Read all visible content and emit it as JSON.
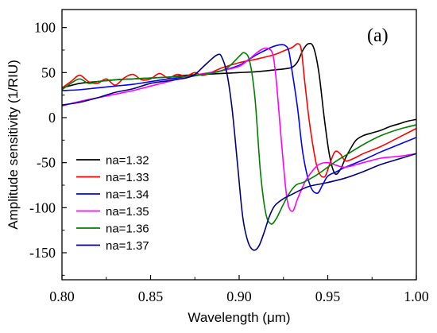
{
  "chart_data": {
    "type": "line",
    "panel_label": "(a)",
    "xlabel": "Wavelength (μm)",
    "ylabel": "Amplitude sensitivity (1/RIU)",
    "xlim": [
      0.8,
      1.0
    ],
    "ylim": [
      -180,
      120
    ],
    "xticks": [
      0.8,
      0.85,
      0.9,
      0.95,
      1.0
    ],
    "xtick_labels": [
      "0.80",
      "0.85",
      "0.90",
      "0.95",
      "1.00"
    ],
    "yticks": [
      100,
      50,
      0,
      -50,
      -100,
      -150
    ],
    "ytick_labels": [
      "100",
      "50",
      "0",
      "-50",
      "-100",
      "-150"
    ],
    "grid": false,
    "legend_position": "lower-left",
    "series": [
      {
        "name": "na=1.32",
        "color": "#000000",
        "x": [
          0.8,
          0.81,
          0.82,
          0.83,
          0.84,
          0.85,
          0.86,
          0.87,
          0.88,
          0.89,
          0.9,
          0.91,
          0.92,
          0.925,
          0.93,
          0.933,
          0.936,
          0.939,
          0.942,
          0.945,
          0.948,
          0.951,
          0.954,
          0.957,
          0.96,
          0.963,
          0.966,
          0.97,
          0.975,
          0.98,
          0.985,
          0.99,
          0.995,
          1.0
        ],
        "y": [
          33,
          38,
          40,
          42,
          43,
          44,
          45,
          47,
          48,
          49,
          50,
          51,
          53,
          54,
          56,
          62,
          75,
          82,
          78,
          50,
          0,
          -42,
          -62,
          -58,
          -45,
          -34,
          -25,
          -20,
          -17,
          -14,
          -10,
          -7,
          -4,
          -2
        ]
      },
      {
        "name": "na=1.33",
        "color": "#ff0000",
        "x": [
          0.8,
          0.805,
          0.81,
          0.815,
          0.82,
          0.825,
          0.83,
          0.835,
          0.84,
          0.845,
          0.85,
          0.855,
          0.86,
          0.865,
          0.87,
          0.875,
          0.88,
          0.89,
          0.9,
          0.91,
          0.92,
          0.925,
          0.93,
          0.933,
          0.935,
          0.937,
          0.94,
          0.944,
          0.948,
          0.951,
          0.954,
          0.957,
          0.96,
          0.965,
          0.97,
          0.98,
          0.99,
          1.0
        ],
        "y": [
          33,
          40,
          47,
          40,
          38,
          43,
          36,
          44,
          48,
          42,
          43,
          49,
          44,
          48,
          46,
          50,
          47,
          55,
          61,
          65,
          70,
          74,
          78,
          82,
          76,
          40,
          -10,
          -55,
          -66,
          -52,
          -38,
          -40,
          -48,
          -45,
          -40,
          -32,
          -22,
          -12
        ]
      },
      {
        "name": "na=1.34",
        "color": "#0000ff",
        "x": [
          0.8,
          0.81,
          0.82,
          0.83,
          0.84,
          0.85,
          0.86,
          0.87,
          0.88,
          0.89,
          0.9,
          0.905,
          0.91,
          0.915,
          0.918,
          0.921,
          0.924,
          0.926,
          0.928,
          0.93,
          0.933,
          0.936,
          0.94,
          0.944,
          0.947,
          0.95,
          0.955,
          0.96,
          0.97,
          0.98,
          0.99,
          1.0
        ],
        "y": [
          30,
          31,
          33,
          35,
          37,
          40,
          43,
          45,
          48,
          52,
          58,
          64,
          70,
          75,
          78,
          80,
          81,
          80,
          74,
          50,
          10,
          -40,
          -75,
          -84,
          -75,
          -65,
          -60,
          -55,
          -47,
          -38,
          -30,
          -22
        ]
      },
      {
        "name": "na=1.35",
        "color": "#ff00ff",
        "x": [
          0.8,
          0.81,
          0.82,
          0.83,
          0.84,
          0.85,
          0.86,
          0.87,
          0.88,
          0.89,
          0.9,
          0.905,
          0.91,
          0.913,
          0.916,
          0.919,
          0.921,
          0.924,
          0.927,
          0.93,
          0.933,
          0.937,
          0.941,
          0.945,
          0.95,
          0.955,
          0.96,
          0.97,
          0.98,
          0.99,
          1.0
        ],
        "y": [
          13,
          18,
          22,
          26,
          30,
          35,
          40,
          45,
          49,
          52,
          57,
          64,
          72,
          76,
          77,
          70,
          40,
          -30,
          -90,
          -104,
          -90,
          -72,
          -60,
          -52,
          -50,
          -53,
          -55,
          -50,
          -45,
          -43,
          -40
        ]
      },
      {
        "name": "na=1.36",
        "color": "#008000",
        "x": [
          0.8,
          0.805,
          0.81,
          0.815,
          0.82,
          0.83,
          0.84,
          0.85,
          0.86,
          0.87,
          0.88,
          0.89,
          0.895,
          0.9,
          0.903,
          0.906,
          0.909,
          0.912,
          0.915,
          0.918,
          0.921,
          0.924,
          0.928,
          0.932,
          0.936,
          0.94,
          0.945,
          0.95,
          0.955,
          0.96,
          0.97,
          0.98,
          0.99,
          1.0
        ],
        "y": [
          31,
          38,
          43,
          38,
          40,
          42,
          43,
          44,
          45,
          46,
          48,
          52,
          58,
          68,
          72,
          62,
          20,
          -60,
          -106,
          -118,
          -112,
          -100,
          -85,
          -75,
          -72,
          -68,
          -62,
          -55,
          -48,
          -42,
          -30,
          -20,
          -13,
          -8
        ]
      },
      {
        "name": "na=1.37",
        "color": "#000080",
        "x": [
          0.8,
          0.81,
          0.82,
          0.83,
          0.84,
          0.85,
          0.86,
          0.87,
          0.875,
          0.88,
          0.885,
          0.888,
          0.89,
          0.893,
          0.896,
          0.899,
          0.902,
          0.905,
          0.908,
          0.911,
          0.914,
          0.917,
          0.92,
          0.925,
          0.93,
          0.935,
          0.94,
          0.95,
          0.96,
          0.97,
          0.98,
          0.99,
          1.0
        ],
        "y": [
          14,
          17,
          22,
          28,
          32,
          38,
          41,
          44,
          48,
          57,
          66,
          70,
          68,
          50,
          10,
          -50,
          -110,
          -138,
          -147,
          -143,
          -128,
          -110,
          -98,
          -90,
          -85,
          -80,
          -76,
          -72,
          -67,
          -60,
          -52,
          -46,
          -40
        ]
      }
    ]
  }
}
